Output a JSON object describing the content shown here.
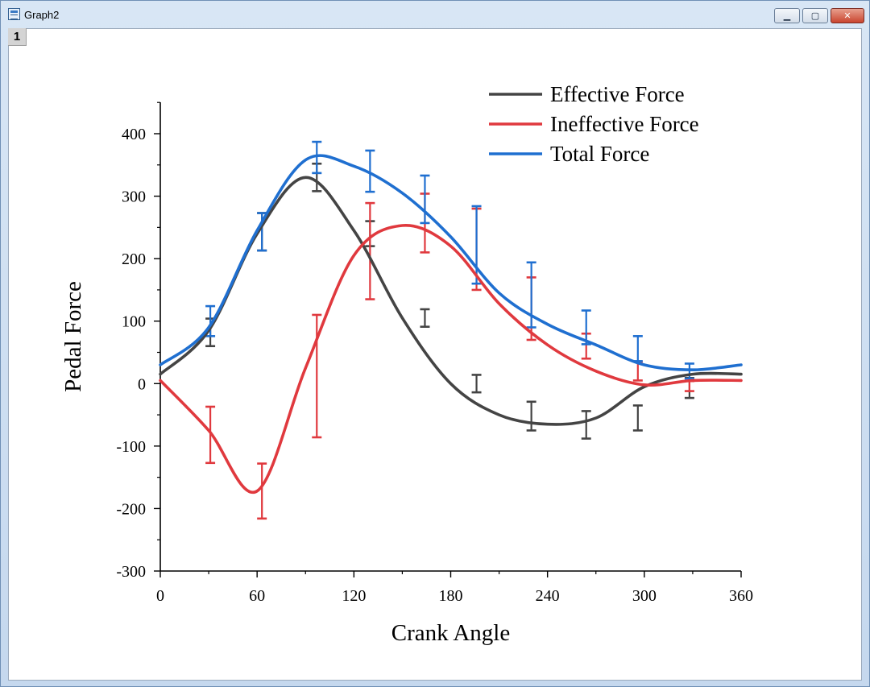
{
  "window": {
    "title": "Graph2",
    "layer_label": "1",
    "minimize_glyph": "▁",
    "maximize_glyph": "▢",
    "close_glyph": "✕"
  },
  "chart_data": {
    "type": "line",
    "title": "",
    "xlabel": "Crank Angle",
    "ylabel": "Pedal Force",
    "xlim": [
      0,
      360
    ],
    "ylim": [
      -300,
      450
    ],
    "xticks": [
      0,
      60,
      120,
      180,
      240,
      300,
      360
    ],
    "yticks": [
      -300,
      -200,
      -100,
      0,
      100,
      200,
      300,
      400
    ],
    "grid": false,
    "legend_position": "top-right",
    "series": [
      {
        "name": "Effective Force",
        "color": "#444444",
        "x": [
          0,
          30,
          60,
          90,
          120,
          150,
          180,
          210,
          240,
          270,
          300,
          330,
          360
        ],
        "y": [
          15,
          85,
          240,
          330,
          245,
          105,
          0,
          -50,
          -65,
          -55,
          -5,
          15,
          15
        ],
        "error_x": [
          31,
          63,
          97,
          130,
          164,
          196,
          230,
          264,
          296,
          328
        ],
        "error_y": [
          82,
          243,
          330,
          240,
          105,
          0,
          -52,
          -66,
          -55,
          -7
        ],
        "error_err": [
          22,
          30,
          22,
          20,
          14,
          14,
          23,
          22,
          20,
          16
        ]
      },
      {
        "name": "Ineffective Force",
        "color": "#e0393e",
        "x": [
          0,
          30,
          60,
          90,
          120,
          150,
          180,
          210,
          240,
          270,
          300,
          330,
          360
        ],
        "y": [
          5,
          -75,
          -172,
          25,
          205,
          253,
          220,
          128,
          62,
          20,
          -2,
          5,
          5
        ],
        "error_x": [
          31,
          63,
          97,
          130,
          164,
          196,
          230,
          264,
          296,
          328
        ],
        "error_y": [
          -82,
          -172,
          12,
          212,
          257,
          215,
          120,
          60,
          20,
          -4
        ],
        "error_err": [
          45,
          44,
          98,
          77,
          47,
          65,
          50,
          20,
          15,
          8
        ]
      },
      {
        "name": "Total Force",
        "color": "#1f6fd0",
        "x": [
          0,
          30,
          60,
          90,
          120,
          150,
          180,
          210,
          240,
          270,
          300,
          330,
          360
        ],
        "y": [
          30,
          90,
          245,
          358,
          348,
          305,
          235,
          145,
          95,
          62,
          30,
          22,
          30
        ],
        "error_x": [
          31,
          63,
          97,
          130,
          164,
          196,
          230,
          264,
          296,
          328
        ],
        "error_y": [
          100,
          243,
          362,
          340,
          295,
          222,
          142,
          90,
          56,
          20
        ],
        "error_err": [
          24,
          30,
          25,
          33,
          38,
          62,
          52,
          27,
          20,
          12
        ]
      }
    ]
  }
}
